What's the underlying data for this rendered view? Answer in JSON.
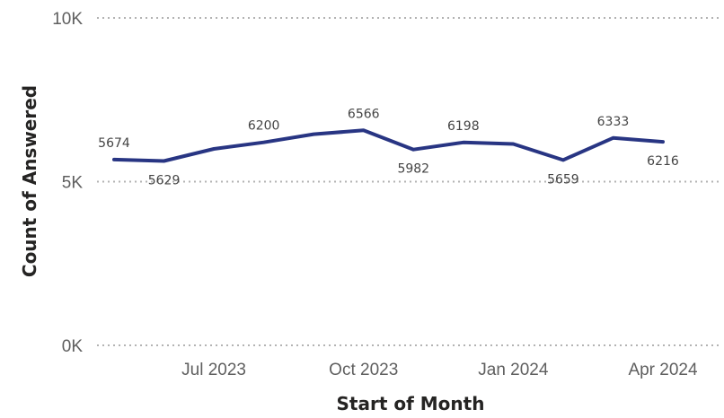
{
  "chart_data": {
    "type": "line",
    "xlabel": "Start of Month",
    "ylabel": "Count of Answered",
    "x": [
      "2023-05",
      "2023-06",
      "2023-07",
      "2023-08",
      "2023-09",
      "2023-10",
      "2023-11",
      "2023-12",
      "2024-01",
      "2024-02",
      "2024-03",
      "2024-04"
    ],
    "x_tick_labels": [
      {
        "x": "2023-07",
        "label": "Jul 2023"
      },
      {
        "x": "2023-10",
        "label": "Oct 2023"
      },
      {
        "x": "2024-01",
        "label": "Jan 2024"
      },
      {
        "x": "2024-04",
        "label": "Apr 2024"
      }
    ],
    "y_ticks": [
      {
        "value": 0,
        "label": "0K"
      },
      {
        "value": 5000,
        "label": "5K"
      },
      {
        "value": 10000,
        "label": "10K"
      }
    ],
    "ylim": [
      0,
      10000
    ],
    "series": [
      {
        "values": [
          5674,
          5629,
          6000,
          6200,
          6450,
          6566,
          5982,
          6198,
          6150,
          5659,
          6333,
          6216
        ],
        "color": "#283583"
      }
    ],
    "data_labels": [
      {
        "index": 0,
        "text": "5674",
        "position": "above"
      },
      {
        "index": 1,
        "text": "5629",
        "position": "below"
      },
      {
        "index": 3,
        "text": "6200",
        "position": "above"
      },
      {
        "index": 5,
        "text": "6566",
        "position": "above"
      },
      {
        "index": 6,
        "text": "5982",
        "position": "below"
      },
      {
        "index": 7,
        "text": "6198",
        "position": "above"
      },
      {
        "index": 9,
        "text": "5659",
        "position": "below"
      },
      {
        "index": 10,
        "text": "6333",
        "position": "above"
      },
      {
        "index": 11,
        "text": "6216",
        "position": "below"
      }
    ],
    "grid": true,
    "legend": "none"
  }
}
